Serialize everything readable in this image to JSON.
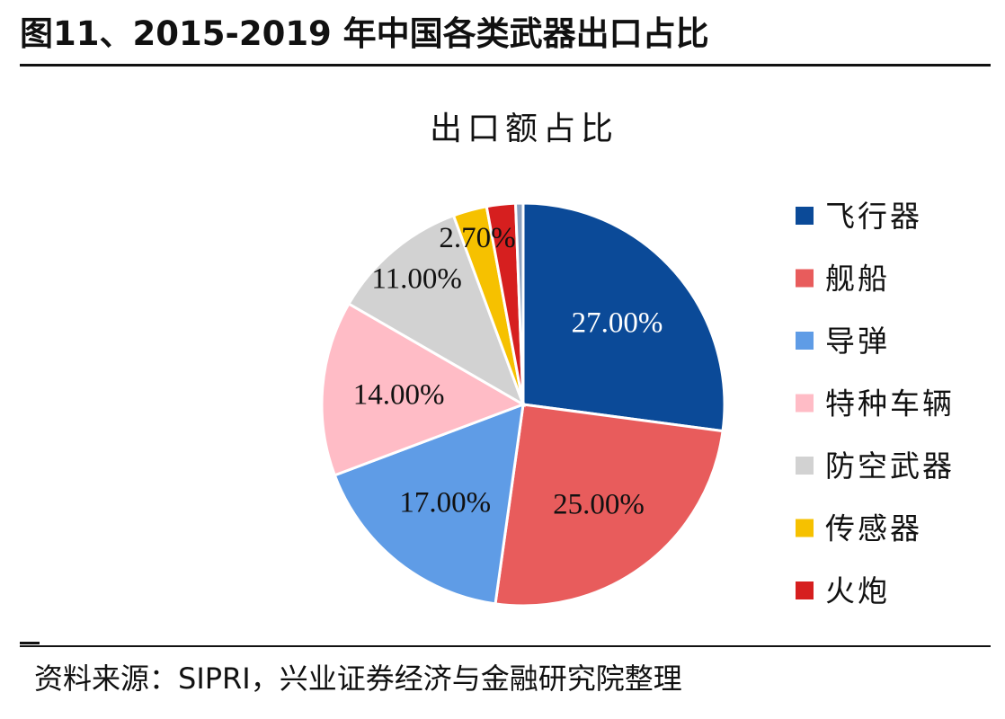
{
  "figure": {
    "title": "图11、2015-2019 年中国各类武器出口占比",
    "source": "资料来源：SIPRI，兴业证券经济与金融研究院整理"
  },
  "chart_data": {
    "type": "pie",
    "title": "出口额占比",
    "legend_position": "right",
    "slices": [
      {
        "label": "飞行器",
        "value": 27.0,
        "display": "27.00%",
        "color": "#0b4a98",
        "label_color": "#ffffff"
      },
      {
        "label": "舰船",
        "value": 25.0,
        "display": "25.00%",
        "color": "#e85c5c",
        "label_color": "#111111"
      },
      {
        "label": "导弹",
        "value": 17.0,
        "display": "17.00%",
        "color": "#5f9ce6",
        "label_color": "#111111"
      },
      {
        "label": "特种车辆",
        "value": 14.0,
        "display": "14.00%",
        "color": "#ffbcc6",
        "label_color": "#111111"
      },
      {
        "label": "防空武器",
        "value": 11.0,
        "display": "11.00%",
        "color": "#d2d2d2",
        "label_color": "#111111"
      },
      {
        "label": "传感器",
        "value": 2.7,
        "display": "2.70%",
        "color": "#f6c100",
        "label_color": "#111111"
      },
      {
        "label": "火炮",
        "value": 2.3,
        "display": "",
        "color": "#d61f1f",
        "label_color": "#111111"
      },
      {
        "label": "",
        "value": 0.6,
        "display": "",
        "color": "#8aa0c0",
        "label_color": "#111111",
        "legend": false
      }
    ]
  }
}
